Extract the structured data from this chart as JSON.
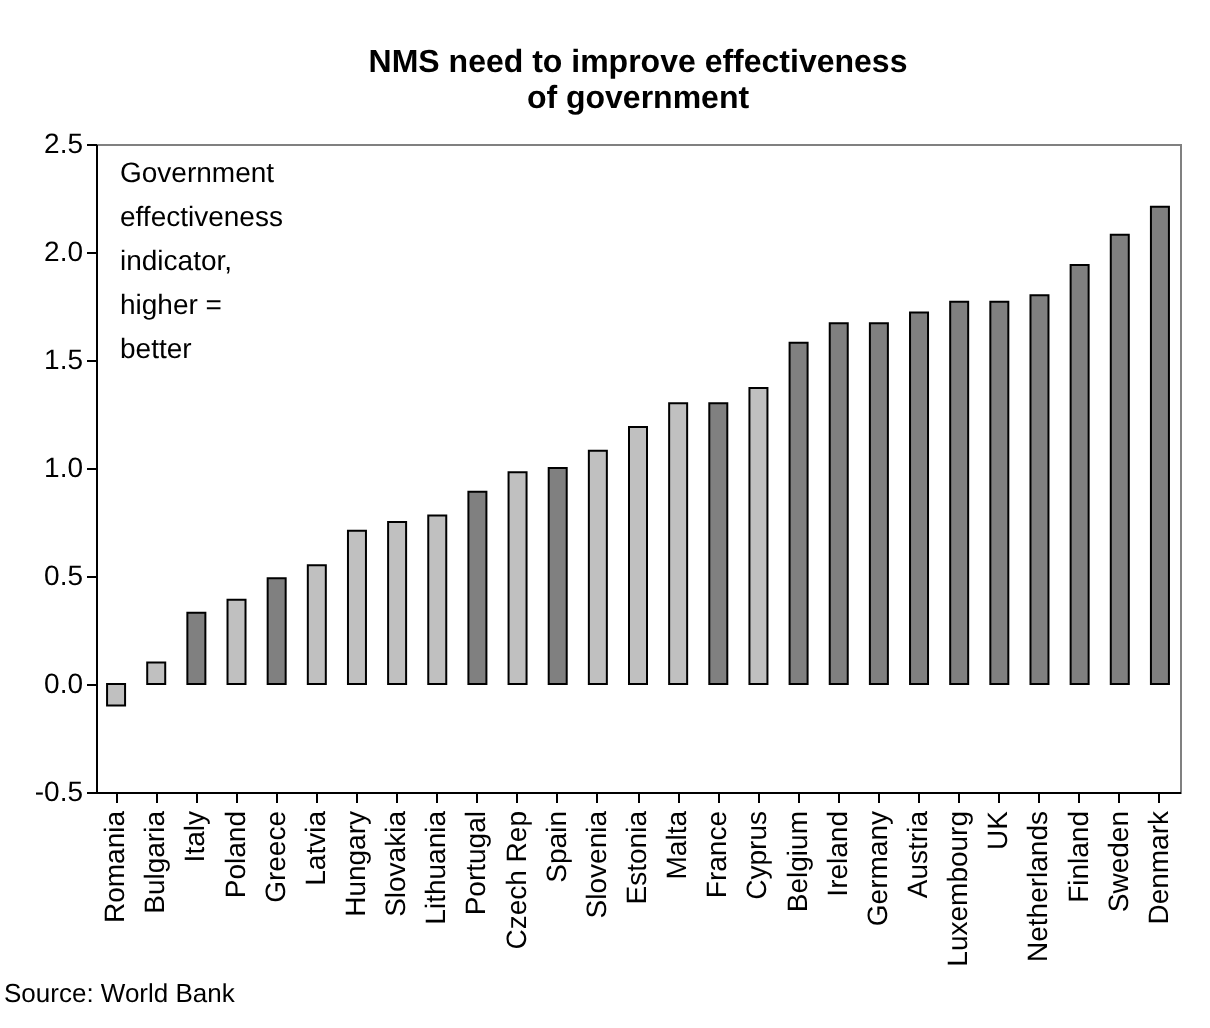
{
  "chart_data": {
    "type": "bar",
    "title": "NMS need to improve effectiveness\nof government",
    "categories": [
      "Romania",
      "Bulgaria",
      "Italy",
      "Poland",
      "Greece",
      "Latvia",
      "Hungary",
      "Slovakia",
      "Lithuania",
      "Portugal",
      "Czech Rep",
      "Spain",
      "Slovenia",
      "Estonia",
      "Malta",
      "France",
      "Cyprus",
      "Belgium",
      "Ireland",
      "Germany",
      "Austria",
      "Luxembourg",
      "UK",
      "Netherlands",
      "Finland",
      "Sweden",
      "Denmark"
    ],
    "values": [
      -0.1,
      0.1,
      0.33,
      0.39,
      0.49,
      0.55,
      0.71,
      0.75,
      0.78,
      0.89,
      0.98,
      1.0,
      1.08,
      1.19,
      1.3,
      1.3,
      1.37,
      1.58,
      1.67,
      1.67,
      1.72,
      1.77,
      1.77,
      1.8,
      1.94,
      2.08,
      2.21
    ],
    "colors": [
      "#c0c0c0",
      "#c0c0c0",
      "#808080",
      "#c0c0c0",
      "#808080",
      "#c0c0c0",
      "#c0c0c0",
      "#c0c0c0",
      "#c0c0c0",
      "#808080",
      "#c0c0c0",
      "#808080",
      "#c0c0c0",
      "#c0c0c0",
      "#c0c0c0",
      "#808080",
      "#c0c0c0",
      "#808080",
      "#808080",
      "#808080",
      "#808080",
      "#808080",
      "#808080",
      "#808080",
      "#808080",
      "#808080",
      "#808080"
    ],
    "ylim": [
      -0.5,
      2.5
    ],
    "yticks": [
      {
        "value": -0.5,
        "label": "-0.5"
      },
      {
        "value": 0,
        "label": "0.0"
      },
      {
        "value": 0.5,
        "label": "0.5"
      },
      {
        "value": 1,
        "label": "1.0"
      },
      {
        "value": 1.5,
        "label": "1.5"
      },
      {
        "value": 2,
        "label": "2.0"
      },
      {
        "value": 2.5,
        "label": "2.5"
      }
    ],
    "grid": false,
    "annotations": [
      "Government\neffectiveness\nindicator,\nhigher =\nbetter",
      "Source: World Bank"
    ]
  }
}
